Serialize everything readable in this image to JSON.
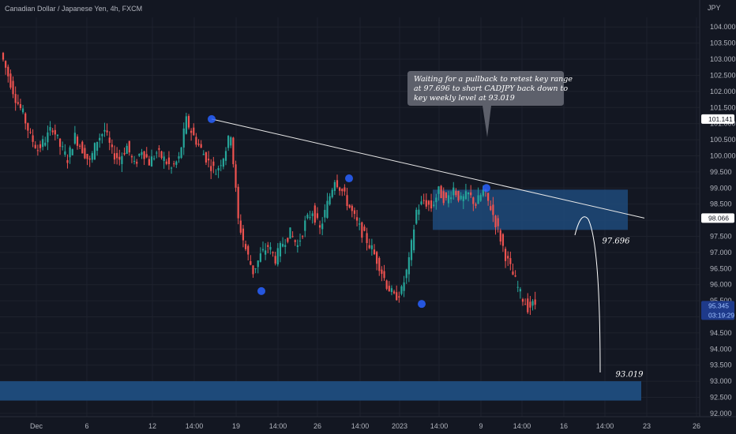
{
  "header": {
    "title": "Canadian Dollar / Japanese Yen, 4h, FXCM",
    "currency": "JPY"
  },
  "colors": {
    "background": "#131722",
    "up": "#26a69a",
    "down": "#ef5350",
    "zone": "#1e4a7a",
    "marker": "#2962ff",
    "grid": "#1e222d"
  },
  "chart_data": {
    "type": "candlestick",
    "title": "Canadian Dollar / Japanese Yen, 4h, FXCM",
    "ylim": [
      91.9,
      104.3
    ],
    "y_ticks": [
      92.0,
      92.5,
      93.0,
      93.5,
      94.0,
      94.5,
      95.0,
      95.5,
      96.0,
      96.5,
      97.0,
      97.5,
      98.0,
      98.5,
      99.0,
      99.5,
      100.0,
      100.5,
      101.0,
      101.5,
      102.0,
      102.5,
      103.0,
      103.5,
      104.0
    ],
    "y_tick_labels": [
      "92.000",
      "92.500",
      "93.000",
      "93.500",
      "94.000",
      "94.500",
      "95.000",
      "95.500",
      "96.000",
      "96.500",
      "97.000",
      "97.500",
      "98.000",
      "98.500",
      "99.000",
      "99.500",
      "100.000",
      "100.500",
      "101.000",
      "101.500",
      "102.000",
      "102.500",
      "103.000",
      "103.500",
      "104.000"
    ],
    "x_labels": [
      "Dec",
      "6",
      "12",
      "14:00",
      "19",
      "14:00",
      "26",
      "14:00",
      "2023",
      "14:00",
      "9",
      "14:00",
      "16",
      "14:00",
      "23",
      "26"
    ],
    "price_path": [
      103.2,
      102.5,
      101.8,
      101.3,
      100.6,
      100.2,
      100.5,
      100.9,
      100.3,
      99.9,
      100.6,
      100.2,
      99.8,
      100.5,
      100.8,
      100.1,
      99.9,
      100.3,
      99.7,
      100.2,
      99.8,
      100.1,
      99.9,
      99.6,
      99.9,
      101.1,
      100.6,
      100.2,
      99.8,
      99.5,
      100.0,
      100.7,
      98.0,
      97.1,
      96.4,
      96.9,
      97.2,
      96.8,
      97.3,
      97.6,
      97.2,
      97.9,
      98.3,
      97.7,
      98.5,
      99.3,
      98.9,
      98.4,
      97.9,
      97.5,
      97.1,
      96.6,
      96.0,
      95.6,
      95.8,
      96.7,
      98.3,
      98.6,
      98.4,
      98.9,
      98.6,
      99.0,
      98.6,
      98.8,
      98.5,
      98.9,
      98.4,
      97.7,
      96.9,
      96.3,
      95.7,
      95.3,
      95.4
    ],
    "current_price": "95.345",
    "countdown": "03:19:29",
    "price_badges": [
      "101.141",
      "98.066"
    ],
    "trendline": {
      "from": {
        "x_index": 25,
        "price": 101.141
      },
      "to": {
        "x_index": 78,
        "price": 98.066
      }
    },
    "supply_zone": {
      "low": 97.7,
      "high": 98.95,
      "x_start_index": 56,
      "x_end_index": 78
    },
    "weekly_zone": {
      "low": 92.4,
      "high": 93.0
    },
    "swing_markers": [
      {
        "x_index": 25,
        "price": 101.141
      },
      {
        "x_index": 33,
        "price": 95.8
      },
      {
        "x_index": 44,
        "price": 99.3
      },
      {
        "x_index": 53,
        "price": 95.4
      },
      {
        "x_index": 61,
        "price": 99.0
      }
    ],
    "levels": [
      {
        "label": "97.696",
        "price": 97.696
      },
      {
        "label": "93.019",
        "price": 93.019
      }
    ],
    "annotation": "Waiting for a pullback to retest key range at 97.696 to short CADJPY back down to key weekly level at 93.019",
    "annotation_lines": [
      "Waiting for a pullback to retest key range",
      "at 97.696 to short CADJPY back down to",
      "key weekly level at 93.019"
    ]
  }
}
